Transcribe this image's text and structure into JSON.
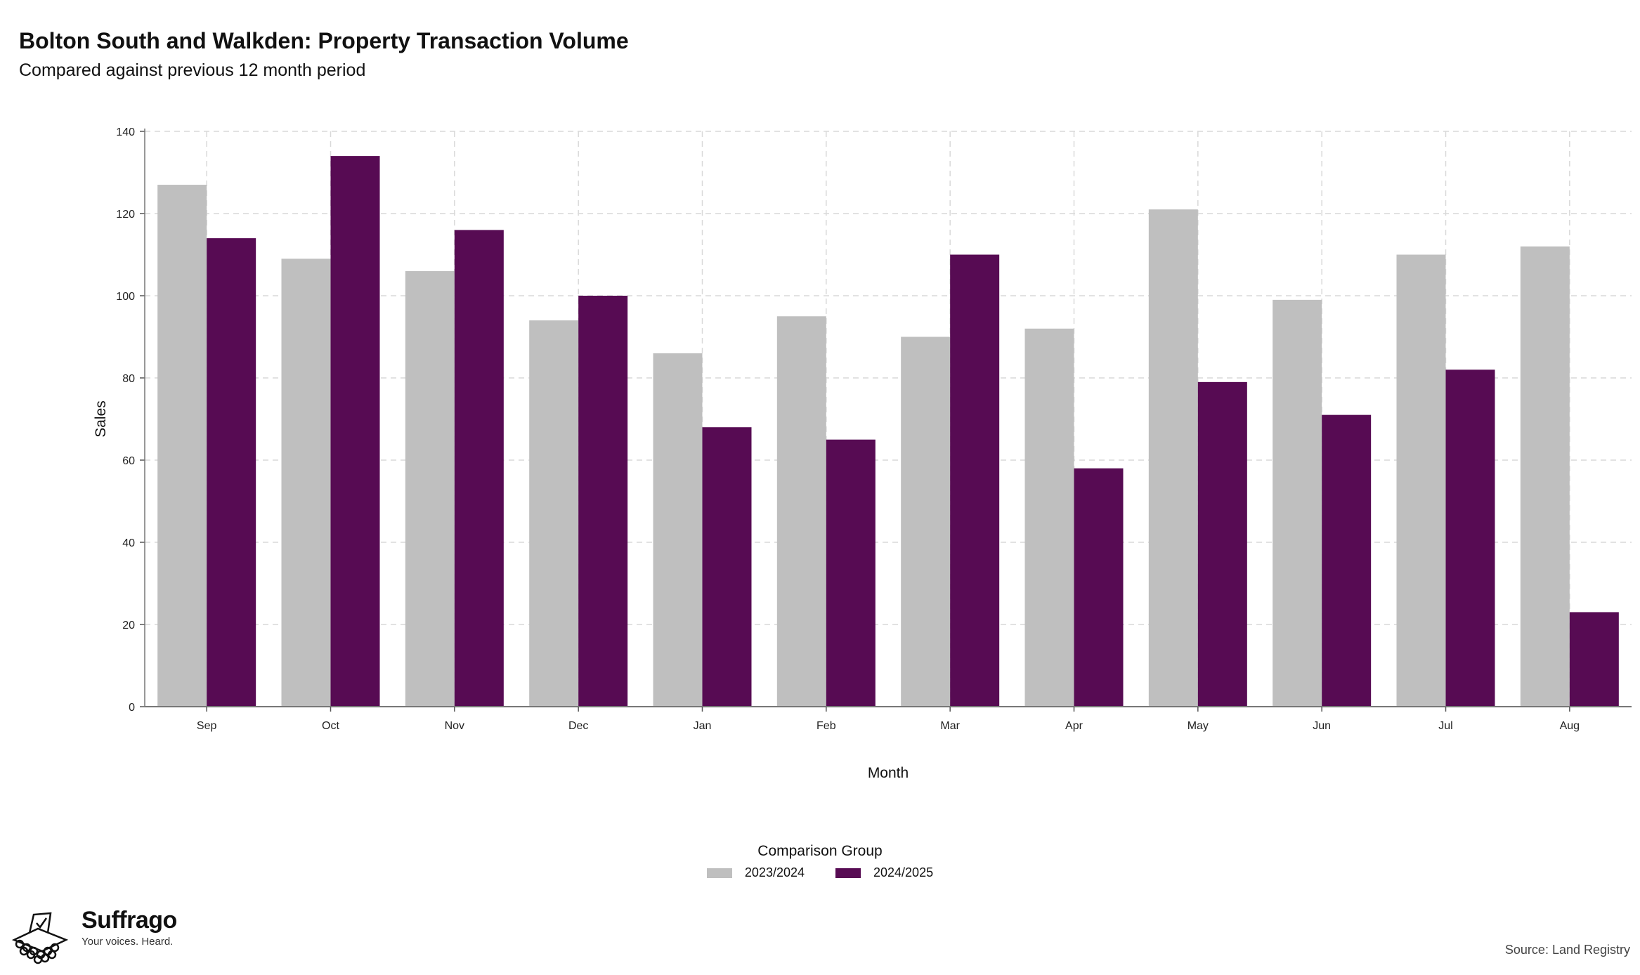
{
  "header": {
    "title": "Bolton South and Walkden: Property Transaction Volume",
    "subtitle": "Compared against previous 12 month period"
  },
  "chart_data": {
    "type": "bar",
    "categories": [
      "Sep",
      "Oct",
      "Nov",
      "Dec",
      "Jan",
      "Feb",
      "Mar",
      "Apr",
      "May",
      "Jun",
      "Jul",
      "Aug"
    ],
    "series": [
      {
        "name": "2023/2024",
        "color": "#bfbfbf",
        "values": [
          127,
          109,
          106,
          94,
          86,
          95,
          90,
          92,
          121,
          99,
          110,
          112
        ]
      },
      {
        "name": "2024/2025",
        "color": "#570b53",
        "values": [
          114,
          134,
          116,
          100,
          68,
          65,
          110,
          58,
          79,
          71,
          82,
          23
        ]
      }
    ],
    "xlabel": "Month",
    "ylabel": "Sales",
    "ylim": [
      0,
      140
    ],
    "yticks": [
      0,
      20,
      40,
      60,
      80,
      100,
      120,
      140
    ],
    "grid": true,
    "legend": {
      "title": "Comparison Group",
      "position": "bottom"
    }
  },
  "branding": {
    "name": "Suffrago",
    "tagline": "Your voices. Heard.",
    "logo_icon": "ballot-box-icon"
  },
  "footer": {
    "source": "Source: Land Registry"
  }
}
